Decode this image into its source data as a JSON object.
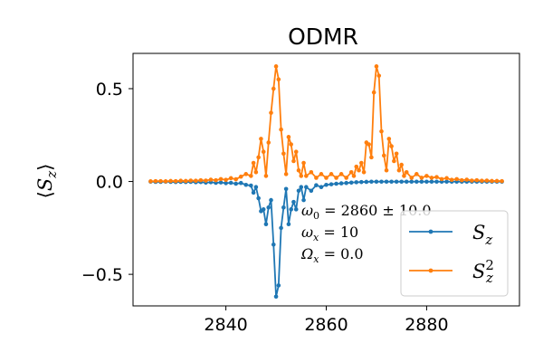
{
  "chart_data": {
    "type": "line",
    "title": "ODMR",
    "xlabel": "",
    "ylabel": "⟨S_z⟩",
    "xlim": [
      2821.5,
      2898.5
    ],
    "ylim": [
      -0.67,
      0.69
    ],
    "xticks": [
      2840,
      2860,
      2880
    ],
    "yticks": [
      0.5,
      0.0,
      -0.5
    ],
    "ytick_labels": [
      "0.5",
      "0.0",
      "−0.5"
    ],
    "grid": false,
    "legend_position": "lower-right",
    "annotations": [
      {
        "base": "ω",
        "sub": "0",
        "text": " = 2860 ± 10.0"
      },
      {
        "base": "ω",
        "sub": "x",
        "text": " = 10"
      },
      {
        "base": "Ω",
        "sub": "x",
        "text": " = 0.0"
      }
    ],
    "series": [
      {
        "name": "S_z",
        "color": "#1f77b4",
        "points": [
          [
            2825.0,
            -0.001
          ],
          [
            2826.0,
            -0.002
          ],
          [
            2827.0,
            -0.002
          ],
          [
            2828.0,
            -0.001
          ],
          [
            2829.0,
            -0.002
          ],
          [
            2830.0,
            -0.003
          ],
          [
            2831.0,
            -0.002
          ],
          [
            2832.0,
            -0.003
          ],
          [
            2833.0,
            -0.002
          ],
          [
            2834.0,
            -0.004
          ],
          [
            2835.0,
            -0.003
          ],
          [
            2836.0,
            -0.006
          ],
          [
            2837.0,
            -0.004
          ],
          [
            2838.0,
            -0.007
          ],
          [
            2839.0,
            -0.005
          ],
          [
            2840.0,
            -0.009
          ],
          [
            2841.0,
            -0.007
          ],
          [
            2842.0,
            -0.012
          ],
          [
            2843.0,
            -0.008
          ],
          [
            2844.0,
            -0.018
          ],
          [
            2845.0,
            -0.022
          ],
          [
            2845.5,
            -0.06
          ],
          [
            2846.0,
            -0.03
          ],
          [
            2846.5,
            -0.09
          ],
          [
            2847.0,
            -0.16
          ],
          [
            2847.5,
            -0.15
          ],
          [
            2848.0,
            -0.23
          ],
          [
            2848.5,
            -0.14
          ],
          [
            2849.0,
            -0.1
          ],
          [
            2849.5,
            -0.34
          ],
          [
            2850.0,
            -0.62
          ],
          [
            2850.5,
            -0.56
          ],
          [
            2851.0,
            -0.25
          ],
          [
            2851.5,
            -0.14
          ],
          [
            2852.0,
            -0.04
          ],
          [
            2852.5,
            -0.23
          ],
          [
            2853.0,
            -0.15
          ],
          [
            2853.5,
            -0.11
          ],
          [
            2854.0,
            -0.15
          ],
          [
            2854.5,
            -0.05
          ],
          [
            2855.0,
            -0.03
          ],
          [
            2855.5,
            -0.1
          ],
          [
            2856.0,
            -0.03
          ],
          [
            2857.0,
            -0.05
          ],
          [
            2858.0,
            -0.02
          ],
          [
            2859.0,
            -0.03
          ],
          [
            2860.0,
            -0.018
          ],
          [
            2861.0,
            -0.015
          ],
          [
            2862.0,
            -0.012
          ],
          [
            2863.0,
            -0.01
          ],
          [
            2864.0,
            -0.008
          ],
          [
            2865.0,
            -0.006
          ],
          [
            2866.0,
            -0.004
          ],
          [
            2867.0,
            -0.003
          ],
          [
            2868.0,
            -0.002
          ],
          [
            2869.0,
            -0.001
          ],
          [
            2870.0,
            -0.001
          ],
          [
            2871.0,
            -0.001
          ],
          [
            2872.0,
            -0.001
          ],
          [
            2873.0,
            -0.001
          ],
          [
            2874.0,
            -0.001
          ],
          [
            2875.0,
            -0.001
          ],
          [
            2876.0,
            -0.001
          ],
          [
            2877.0,
            -0.001
          ],
          [
            2878.0,
            -0.001
          ],
          [
            2879.0,
            -0.001
          ],
          [
            2880.0,
            -0.001
          ],
          [
            2881.0,
            -0.001
          ],
          [
            2882.0,
            -0.001
          ],
          [
            2883.0,
            -0.001
          ],
          [
            2884.0,
            -0.001
          ],
          [
            2885.0,
            -0.001
          ],
          [
            2886.0,
            -0.001
          ],
          [
            2887.0,
            -0.001
          ],
          [
            2888.0,
            -0.001
          ],
          [
            2889.0,
            -0.001
          ],
          [
            2890.0,
            -0.001
          ],
          [
            2891.0,
            -0.001
          ],
          [
            2892.0,
            -0.001
          ],
          [
            2893.0,
            -0.001
          ],
          [
            2894.0,
            -0.001
          ],
          [
            2895.0,
            -0.001
          ]
        ]
      },
      {
        "name": "S_z^2",
        "color": "#ff7f0e",
        "points": [
          [
            2825.0,
            0.001
          ],
          [
            2826.0,
            0.002
          ],
          [
            2827.0,
            0.002
          ],
          [
            2828.0,
            0.001
          ],
          [
            2829.0,
            0.003
          ],
          [
            2830.0,
            0.002
          ],
          [
            2831.0,
            0.004
          ],
          [
            2832.0,
            0.003
          ],
          [
            2833.0,
            0.005
          ],
          [
            2834.0,
            0.004
          ],
          [
            2835.0,
            0.007
          ],
          [
            2836.0,
            0.005
          ],
          [
            2837.0,
            0.01
          ],
          [
            2838.0,
            0.007
          ],
          [
            2839.0,
            0.013
          ],
          [
            2840.0,
            0.009
          ],
          [
            2841.0,
            0.018
          ],
          [
            2842.0,
            0.012
          ],
          [
            2843.0,
            0.026
          ],
          [
            2844.0,
            0.04
          ],
          [
            2845.0,
            0.03
          ],
          [
            2845.5,
            0.1
          ],
          [
            2846.0,
            0.05
          ],
          [
            2846.5,
            0.13
          ],
          [
            2847.0,
            0.23
          ],
          [
            2847.5,
            0.16
          ],
          [
            2848.0,
            0.03
          ],
          [
            2848.5,
            0.21
          ],
          [
            2849.0,
            0.37
          ],
          [
            2849.5,
            0.5
          ],
          [
            2850.0,
            0.62
          ],
          [
            2850.5,
            0.55
          ],
          [
            2851.0,
            0.28
          ],
          [
            2851.5,
            0.15
          ],
          [
            2852.0,
            0.04
          ],
          [
            2852.5,
            0.24
          ],
          [
            2853.0,
            0.2
          ],
          [
            2853.5,
            0.11
          ],
          [
            2854.0,
            0.16
          ],
          [
            2854.5,
            0.06
          ],
          [
            2855.0,
            0.03
          ],
          [
            2855.5,
            0.1
          ],
          [
            2856.0,
            0.03
          ],
          [
            2857.0,
            0.05
          ],
          [
            2858.0,
            0.02
          ],
          [
            2859.0,
            0.04
          ],
          [
            2860.0,
            0.02
          ],
          [
            2861.0,
            0.04
          ],
          [
            2862.0,
            0.02
          ],
          [
            2863.0,
            0.04
          ],
          [
            2864.0,
            0.02
          ],
          [
            2865.0,
            0.05
          ],
          [
            2865.5,
            0.03
          ],
          [
            2866.0,
            0.08
          ],
          [
            2866.5,
            0.06
          ],
          [
            2867.0,
            0.1
          ],
          [
            2867.5,
            0.05
          ],
          [
            2868.0,
            0.21
          ],
          [
            2868.5,
            0.2
          ],
          [
            2869.0,
            0.13
          ],
          [
            2869.5,
            0.48
          ],
          [
            2870.0,
            0.62
          ],
          [
            2870.5,
            0.57
          ],
          [
            2871.0,
            0.27
          ],
          [
            2871.5,
            0.14
          ],
          [
            2872.0,
            0.06
          ],
          [
            2872.5,
            0.23
          ],
          [
            2873.0,
            0.19
          ],
          [
            2873.5,
            0.11
          ],
          [
            2874.0,
            0.15
          ],
          [
            2874.5,
            0.06
          ],
          [
            2875.0,
            0.09
          ],
          [
            2875.5,
            0.03
          ],
          [
            2876.0,
            0.05
          ],
          [
            2877.0,
            0.02
          ],
          [
            2878.0,
            0.04
          ],
          [
            2879.0,
            0.02
          ],
          [
            2880.0,
            0.03
          ],
          [
            2881.0,
            0.02
          ],
          [
            2882.0,
            0.024
          ],
          [
            2883.0,
            0.013
          ],
          [
            2884.0,
            0.018
          ],
          [
            2885.0,
            0.009
          ],
          [
            2886.0,
            0.013
          ],
          [
            2887.0,
            0.007
          ],
          [
            2888.0,
            0.01
          ],
          [
            2889.0,
            0.005
          ],
          [
            2890.0,
            0.007
          ],
          [
            2891.0,
            0.004
          ],
          [
            2892.0,
            0.005
          ],
          [
            2893.0,
            0.003
          ],
          [
            2894.0,
            0.003
          ],
          [
            2895.0,
            0.002
          ]
        ]
      }
    ]
  }
}
